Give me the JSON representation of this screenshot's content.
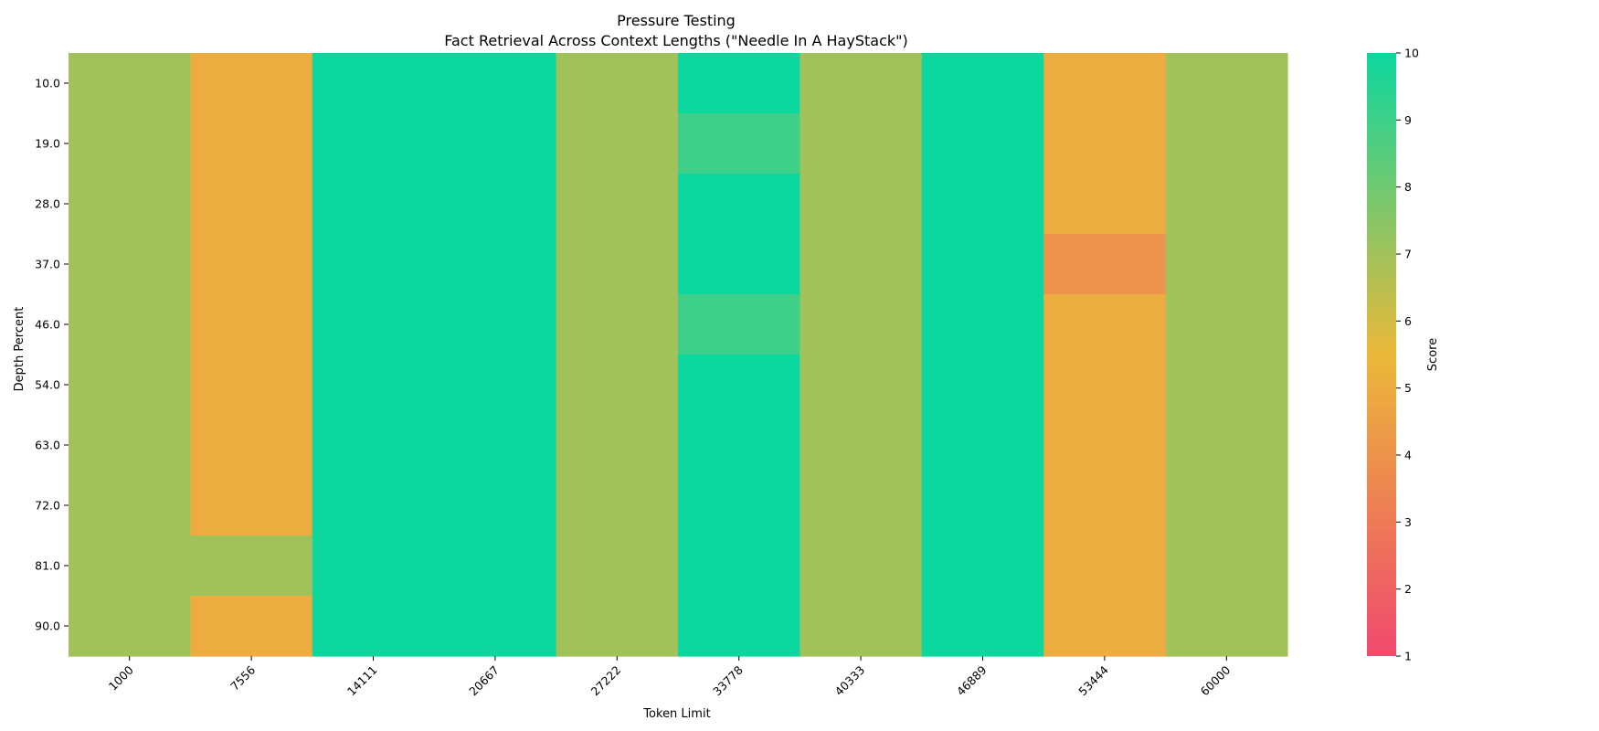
{
  "chart_data": {
    "type": "heatmap",
    "title": "Pressure Testing",
    "subtitle": "Fact Retrieval Across Context Lengths (\"Needle In A HayStack\")",
    "xlabel": "Token Limit",
    "ylabel": "Depth Percent",
    "x_categories": [
      "1000",
      "7556",
      "14111",
      "20667",
      "27222",
      "33778",
      "40333",
      "46889",
      "53444",
      "60000"
    ],
    "y_categories": [
      "10.0",
      "19.0",
      "28.0",
      "37.0",
      "46.0",
      "54.0",
      "63.0",
      "72.0",
      "81.0",
      "90.0"
    ],
    "values": [
      [
        7,
        5,
        10,
        10,
        7,
        10,
        7,
        10,
        5,
        7
      ],
      [
        7,
        5,
        10,
        10,
        7,
        9,
        7,
        10,
        5,
        7
      ],
      [
        7,
        5,
        10,
        10,
        7,
        10,
        7,
        10,
        5,
        7
      ],
      [
        7,
        5,
        10,
        10,
        7,
        10,
        7,
        10,
        4,
        7
      ],
      [
        7,
        5,
        10,
        10,
        7,
        9,
        7,
        10,
        5,
        7
      ],
      [
        7,
        5,
        10,
        10,
        7,
        10,
        7,
        10,
        5,
        7
      ],
      [
        7,
        5,
        10,
        10,
        7,
        10,
        7,
        10,
        5,
        7
      ],
      [
        7,
        5,
        10,
        10,
        7,
        10,
        7,
        10,
        5,
        7
      ],
      [
        7,
        7,
        10,
        10,
        7,
        10,
        7,
        10,
        5,
        7
      ],
      [
        7,
        5,
        10,
        10,
        7,
        10,
        7,
        10,
        5,
        7
      ]
    ],
    "colorbar": {
      "label": "Score",
      "min": 1,
      "max": 10,
      "ticks": [
        "1",
        "2",
        "3",
        "4",
        "5",
        "6",
        "7",
        "8",
        "9",
        "10"
      ],
      "stops": [
        "#F0496E",
        "#EBB839",
        "#0CD79F"
      ]
    },
    "grid": false
  }
}
